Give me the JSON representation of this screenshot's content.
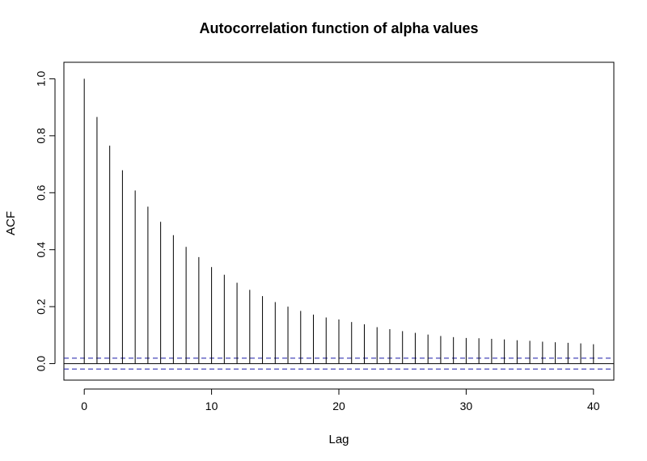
{
  "chart_data": {
    "type": "bar",
    "title": "Autocorrelation function of alpha values",
    "xlabel": "Lag",
    "ylabel": "ACF",
    "xlim": [
      -1.6,
      41.6
    ],
    "ylim": [
      -0.058,
      1.058
    ],
    "x_ticks": [
      0,
      10,
      20,
      30,
      40
    ],
    "y_ticks": [
      "0.0",
      "0.2",
      "0.4",
      "0.6",
      "0.8",
      "1.0"
    ],
    "lags": [
      0,
      1,
      2,
      3,
      4,
      5,
      6,
      7,
      8,
      9,
      10,
      11,
      12,
      13,
      14,
      15,
      16,
      17,
      18,
      19,
      20,
      21,
      22,
      23,
      24,
      25,
      26,
      27,
      28,
      29,
      30,
      31,
      32,
      33,
      34,
      35,
      36,
      37,
      38,
      39,
      40
    ],
    "acf": [
      1.0,
      0.866,
      0.765,
      0.679,
      0.608,
      0.551,
      0.498,
      0.451,
      0.41,
      0.374,
      0.339,
      0.312,
      0.284,
      0.259,
      0.237,
      0.216,
      0.2,
      0.185,
      0.172,
      0.162,
      0.155,
      0.146,
      0.138,
      0.128,
      0.121,
      0.114,
      0.108,
      0.102,
      0.097,
      0.093,
      0.09,
      0.089,
      0.087,
      0.085,
      0.082,
      0.08,
      0.077,
      0.075,
      0.073,
      0.071,
      0.068
    ],
    "confidence_bound": 0.019,
    "colors": {
      "bars": "#000000",
      "zero_line": "#000000",
      "ci_lines": "#1a1aa8"
    }
  }
}
